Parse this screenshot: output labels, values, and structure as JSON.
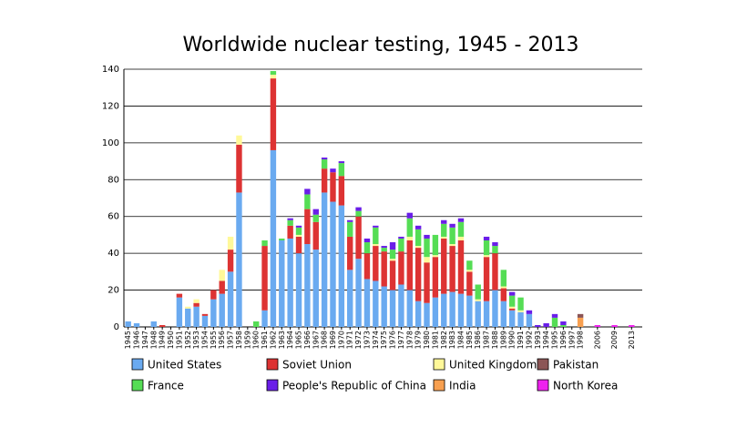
{
  "chart_data": {
    "type": "stacked_bar",
    "title": "Worldwide nuclear testing, 1945 - 2013",
    "categories": [
      "1945",
      "1946",
      "1947",
      "1948",
      "1949",
      "1950",
      "1951",
      "1952",
      "1953",
      "1954",
      "1955",
      "1956",
      "1957",
      "1958",
      "1959",
      "1960",
      "1961",
      "1962",
      "1963",
      "1964",
      "1965",
      "1966",
      "1967",
      "1968",
      "1969",
      "1970",
      "1971",
      "1972",
      "1973",
      "1974",
      "1975",
      "1976",
      "1977",
      "1978",
      "1979",
      "1980",
      "1981",
      "1982",
      "1983",
      "1984",
      "1985",
      "1986",
      "1987",
      "1988",
      "1989",
      "1990",
      "1991",
      "1992",
      "1993",
      "1994",
      "1995",
      "1996",
      "1997",
      "1998",
      null,
      "2006",
      null,
      "2009",
      null,
      "2013"
    ],
    "series": [
      {
        "name": "United States",
        "color": "#6aaaf0",
        "values": [
          3,
          2,
          0,
          3,
          0,
          0,
          16,
          10,
          11,
          6,
          15,
          18,
          30,
          73,
          0,
          0,
          9,
          96,
          47,
          48,
          40,
          45,
          42,
          73,
          68,
          66,
          31,
          37,
          26,
          25,
          22,
          20,
          23,
          20,
          14,
          13,
          16,
          18,
          19,
          18,
          17,
          14,
          14,
          20,
          14,
          9,
          8,
          7,
          0,
          0,
          0,
          0,
          0,
          0,
          null,
          0,
          null,
          0,
          null,
          0
        ]
      },
      {
        "name": "Soviet Union",
        "color": "#dd3333",
        "values": [
          0,
          0,
          0,
          0,
          1,
          0,
          2,
          0,
          2,
          1,
          5,
          7,
          12,
          26,
          0,
          0,
          35,
          39,
          0,
          7,
          9,
          19,
          15,
          13,
          16,
          16,
          18,
          23,
          14,
          19,
          19,
          16,
          18,
          27,
          29,
          22,
          22,
          30,
          25,
          29,
          13,
          0,
          24,
          20,
          7,
          1,
          0,
          0,
          0,
          0,
          0,
          0,
          0,
          0,
          null,
          0,
          null,
          0,
          null,
          0
        ]
      },
      {
        "name": "United Kingdom",
        "color": "#fff899",
        "values": [
          0,
          0,
          0,
          0,
          0,
          0,
          0,
          1,
          2,
          0,
          0,
          6,
          7,
          5,
          0,
          0,
          0,
          2,
          0,
          0,
          1,
          0,
          0,
          0,
          0,
          0,
          0,
          0,
          0,
          1,
          0,
          1,
          0,
          2,
          1,
          3,
          1,
          1,
          1,
          2,
          1,
          1,
          1,
          0,
          1,
          1,
          1,
          0,
          0,
          0,
          0,
          0,
          0,
          0,
          null,
          0,
          null,
          0,
          null,
          0
        ]
      },
      {
        "name": "France",
        "color": "#55dd55",
        "values": [
          0,
          0,
          0,
          0,
          0,
          0,
          0,
          0,
          0,
          0,
          0,
          0,
          0,
          0,
          0,
          3,
          3,
          2,
          1,
          3,
          4,
          8,
          4,
          5,
          0,
          7,
          8,
          3,
          6,
          9,
          2,
          5,
          7,
          10,
          9,
          10,
          11,
          7,
          9,
          8,
          5,
          8,
          8,
          4,
          9,
          6,
          7,
          0,
          0,
          0,
          5,
          1,
          0,
          0,
          null,
          0,
          null,
          0,
          null,
          0
        ]
      },
      {
        "name": "People's Republic of China",
        "color": "#6a1ee8",
        "values": [
          0,
          0,
          0,
          0,
          0,
          0,
          0,
          0,
          0,
          0,
          0,
          0,
          0,
          0,
          0,
          0,
          0,
          0,
          0,
          1,
          1,
          3,
          3,
          1,
          2,
          1,
          1,
          2,
          2,
          1,
          1,
          4,
          1,
          3,
          2,
          2,
          0,
          2,
          2,
          2,
          0,
          0,
          2,
          2,
          0,
          2,
          0,
          2,
          1,
          2,
          2,
          2,
          0,
          0,
          null,
          0,
          null,
          0,
          null,
          0
        ]
      },
      {
        "name": "India",
        "color": "#f8a050",
        "values": [
          0,
          0,
          0,
          0,
          0,
          0,
          0,
          0,
          0,
          0,
          0,
          0,
          0,
          0,
          0,
          0,
          0,
          0,
          0,
          0,
          0,
          0,
          0,
          0,
          0,
          0,
          0,
          0,
          0,
          0,
          0,
          0,
          0,
          0,
          0,
          0,
          0,
          0,
          0,
          0,
          0,
          0,
          0,
          0,
          0,
          0,
          0,
          0,
          0,
          0,
          0,
          0,
          0,
          5,
          null,
          0,
          null,
          0,
          null,
          0
        ]
      },
      {
        "name": "Pakistan",
        "color": "#8b5555",
        "values": [
          0,
          0,
          0,
          0,
          0,
          0,
          0,
          0,
          0,
          0,
          0,
          0,
          0,
          0,
          0,
          0,
          0,
          0,
          0,
          0,
          0,
          0,
          0,
          0,
          0,
          0,
          0,
          0,
          0,
          0,
          0,
          0,
          0,
          0,
          0,
          0,
          0,
          0,
          0,
          0,
          0,
          0,
          0,
          0,
          0,
          0,
          0,
          0,
          0,
          0,
          0,
          0,
          0,
          2,
          null,
          0,
          null,
          0,
          null,
          0
        ]
      },
      {
        "name": "North Korea",
        "color": "#ee22ee",
        "values": [
          0,
          0,
          0,
          0,
          0,
          0,
          0,
          0,
          0,
          0,
          0,
          0,
          0,
          0,
          0,
          0,
          0,
          0,
          0,
          0,
          0,
          0,
          0,
          0,
          0,
          0,
          0,
          0,
          0,
          0,
          0,
          0,
          0,
          0,
          0,
          0,
          0,
          0,
          0,
          0,
          0,
          0,
          0,
          0,
          0,
          0,
          0,
          0,
          0,
          0,
          0,
          0,
          0,
          0,
          null,
          1,
          null,
          1,
          null,
          1
        ]
      }
    ],
    "ylim": [
      0,
      140
    ],
    "yticks": [
      0,
      20,
      40,
      60,
      80,
      100,
      120,
      140
    ],
    "grid": true
  }
}
